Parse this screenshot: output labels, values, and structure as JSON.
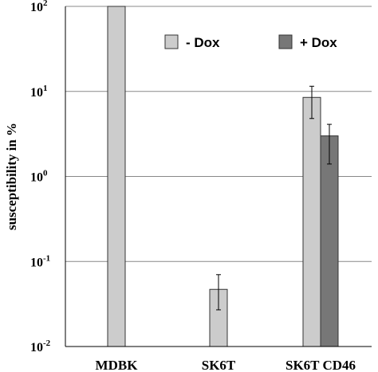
{
  "chart_data": {
    "type": "bar",
    "yscale": "log",
    "ylim": [
      0.01,
      100
    ],
    "ylabel": "susceptibility in %",
    "yticks": [
      {
        "base": "10",
        "exp": "2",
        "value": 100
      },
      {
        "base": "10",
        "exp": "1",
        "value": 10
      },
      {
        "base": "10",
        "exp": "0",
        "value": 1
      },
      {
        "base": "10",
        "exp": "-1",
        "value": 0.1
      },
      {
        "base": "10",
        "exp": "-2",
        "value": 0.01
      }
    ],
    "categories": [
      "MDBK",
      "SK6T",
      "SK6T CD46"
    ],
    "series": [
      {
        "name": "- Dox",
        "color": "#cccccc",
        "values": [
          100,
          0.047,
          8.5
        ],
        "err_low": [
          null,
          0.027,
          4.8
        ],
        "err_high": [
          null,
          0.07,
          11.5
        ]
      },
      {
        "name": "+ Dox",
        "color": "#777777",
        "values": [
          null,
          null,
          3.0
        ],
        "err_low": [
          null,
          null,
          1.4
        ],
        "err_high": [
          null,
          null,
          4.1
        ]
      }
    ],
    "grid": true,
    "legend_position": "top-right"
  }
}
